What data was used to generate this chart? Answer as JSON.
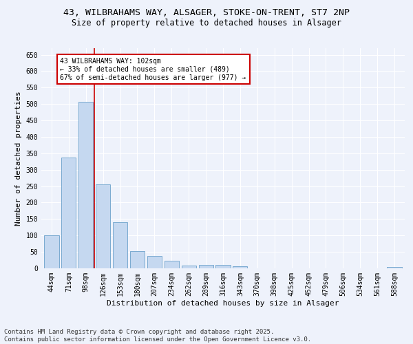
{
  "title_line1": "43, WILBRAHAMS WAY, ALSAGER, STOKE-ON-TRENT, ST7 2NP",
  "title_line2": "Size of property relative to detached houses in Alsager",
  "xlabel": "Distribution of detached houses by size in Alsager",
  "ylabel": "Number of detached properties",
  "categories": [
    "44sqm",
    "71sqm",
    "98sqm",
    "126sqm",
    "153sqm",
    "180sqm",
    "207sqm",
    "234sqm",
    "262sqm",
    "289sqm",
    "316sqm",
    "343sqm",
    "370sqm",
    "398sqm",
    "425sqm",
    "452sqm",
    "479sqm",
    "506sqm",
    "534sqm",
    "561sqm",
    "588sqm"
  ],
  "values": [
    100,
    338,
    507,
    255,
    140,
    53,
    37,
    24,
    9,
    10,
    10,
    6,
    0,
    0,
    0,
    0,
    0,
    0,
    0,
    0,
    5
  ],
  "bar_color": "#c5d8f0",
  "bar_edge_color": "#7aaad0",
  "vline_x": 2.5,
  "vline_color": "#cc0000",
  "annotation_text": "43 WILBRAHAMS WAY: 102sqm\n← 33% of detached houses are smaller (489)\n67% of semi-detached houses are larger (977) →",
  "annotation_box_color": "#ffffff",
  "annotation_border_color": "#cc0000",
  "ylim": [
    0,
    670
  ],
  "yticks": [
    0,
    50,
    100,
    150,
    200,
    250,
    300,
    350,
    400,
    450,
    500,
    550,
    600,
    650
  ],
  "background_color": "#eef2fb",
  "grid_color": "#ffffff",
  "footer": "Contains HM Land Registry data © Crown copyright and database right 2025.\nContains public sector information licensed under the Open Government Licence v3.0.",
  "title_fontsize": 9.5,
  "subtitle_fontsize": 8.5,
  "axis_label_fontsize": 8,
  "tick_fontsize": 7,
  "footer_fontsize": 6.5,
  "annotation_fontsize": 7
}
